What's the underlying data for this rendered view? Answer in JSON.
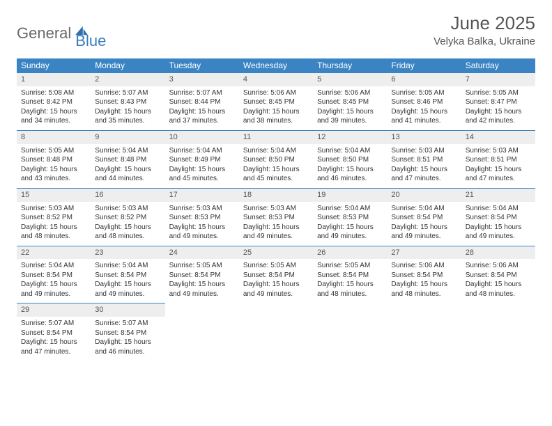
{
  "brand": {
    "first": "General",
    "second": "Blue"
  },
  "title": "June 2025",
  "location": "Velyka Balka, Ukraine",
  "colors": {
    "header_bg": "#3a84c4",
    "header_text": "#ffffff",
    "daynum_bg": "#eeeeee",
    "border": "#3a84c4",
    "text": "#333333",
    "brand_grey": "#6a6a6a",
    "brand_blue": "#3a7cbf"
  },
  "day_names": [
    "Sunday",
    "Monday",
    "Tuesday",
    "Wednesday",
    "Thursday",
    "Friday",
    "Saturday"
  ],
  "weeks": [
    [
      {
        "n": "1",
        "sr": "Sunrise: 5:08 AM",
        "ss": "Sunset: 8:42 PM",
        "d1": "Daylight: 15 hours",
        "d2": "and 34 minutes."
      },
      {
        "n": "2",
        "sr": "Sunrise: 5:07 AM",
        "ss": "Sunset: 8:43 PM",
        "d1": "Daylight: 15 hours",
        "d2": "and 35 minutes."
      },
      {
        "n": "3",
        "sr": "Sunrise: 5:07 AM",
        "ss": "Sunset: 8:44 PM",
        "d1": "Daylight: 15 hours",
        "d2": "and 37 minutes."
      },
      {
        "n": "4",
        "sr": "Sunrise: 5:06 AM",
        "ss": "Sunset: 8:45 PM",
        "d1": "Daylight: 15 hours",
        "d2": "and 38 minutes."
      },
      {
        "n": "5",
        "sr": "Sunrise: 5:06 AM",
        "ss": "Sunset: 8:45 PM",
        "d1": "Daylight: 15 hours",
        "d2": "and 39 minutes."
      },
      {
        "n": "6",
        "sr": "Sunrise: 5:05 AM",
        "ss": "Sunset: 8:46 PM",
        "d1": "Daylight: 15 hours",
        "d2": "and 41 minutes."
      },
      {
        "n": "7",
        "sr": "Sunrise: 5:05 AM",
        "ss": "Sunset: 8:47 PM",
        "d1": "Daylight: 15 hours",
        "d2": "and 42 minutes."
      }
    ],
    [
      {
        "n": "8",
        "sr": "Sunrise: 5:05 AM",
        "ss": "Sunset: 8:48 PM",
        "d1": "Daylight: 15 hours",
        "d2": "and 43 minutes."
      },
      {
        "n": "9",
        "sr": "Sunrise: 5:04 AM",
        "ss": "Sunset: 8:48 PM",
        "d1": "Daylight: 15 hours",
        "d2": "and 44 minutes."
      },
      {
        "n": "10",
        "sr": "Sunrise: 5:04 AM",
        "ss": "Sunset: 8:49 PM",
        "d1": "Daylight: 15 hours",
        "d2": "and 45 minutes."
      },
      {
        "n": "11",
        "sr": "Sunrise: 5:04 AM",
        "ss": "Sunset: 8:50 PM",
        "d1": "Daylight: 15 hours",
        "d2": "and 45 minutes."
      },
      {
        "n": "12",
        "sr": "Sunrise: 5:04 AM",
        "ss": "Sunset: 8:50 PM",
        "d1": "Daylight: 15 hours",
        "d2": "and 46 minutes."
      },
      {
        "n": "13",
        "sr": "Sunrise: 5:03 AM",
        "ss": "Sunset: 8:51 PM",
        "d1": "Daylight: 15 hours",
        "d2": "and 47 minutes."
      },
      {
        "n": "14",
        "sr": "Sunrise: 5:03 AM",
        "ss": "Sunset: 8:51 PM",
        "d1": "Daylight: 15 hours",
        "d2": "and 47 minutes."
      }
    ],
    [
      {
        "n": "15",
        "sr": "Sunrise: 5:03 AM",
        "ss": "Sunset: 8:52 PM",
        "d1": "Daylight: 15 hours",
        "d2": "and 48 minutes."
      },
      {
        "n": "16",
        "sr": "Sunrise: 5:03 AM",
        "ss": "Sunset: 8:52 PM",
        "d1": "Daylight: 15 hours",
        "d2": "and 48 minutes."
      },
      {
        "n": "17",
        "sr": "Sunrise: 5:03 AM",
        "ss": "Sunset: 8:53 PM",
        "d1": "Daylight: 15 hours",
        "d2": "and 49 minutes."
      },
      {
        "n": "18",
        "sr": "Sunrise: 5:03 AM",
        "ss": "Sunset: 8:53 PM",
        "d1": "Daylight: 15 hours",
        "d2": "and 49 minutes."
      },
      {
        "n": "19",
        "sr": "Sunrise: 5:04 AM",
        "ss": "Sunset: 8:53 PM",
        "d1": "Daylight: 15 hours",
        "d2": "and 49 minutes."
      },
      {
        "n": "20",
        "sr": "Sunrise: 5:04 AM",
        "ss": "Sunset: 8:54 PM",
        "d1": "Daylight: 15 hours",
        "d2": "and 49 minutes."
      },
      {
        "n": "21",
        "sr": "Sunrise: 5:04 AM",
        "ss": "Sunset: 8:54 PM",
        "d1": "Daylight: 15 hours",
        "d2": "and 49 minutes."
      }
    ],
    [
      {
        "n": "22",
        "sr": "Sunrise: 5:04 AM",
        "ss": "Sunset: 8:54 PM",
        "d1": "Daylight: 15 hours",
        "d2": "and 49 minutes."
      },
      {
        "n": "23",
        "sr": "Sunrise: 5:04 AM",
        "ss": "Sunset: 8:54 PM",
        "d1": "Daylight: 15 hours",
        "d2": "and 49 minutes."
      },
      {
        "n": "24",
        "sr": "Sunrise: 5:05 AM",
        "ss": "Sunset: 8:54 PM",
        "d1": "Daylight: 15 hours",
        "d2": "and 49 minutes."
      },
      {
        "n": "25",
        "sr": "Sunrise: 5:05 AM",
        "ss": "Sunset: 8:54 PM",
        "d1": "Daylight: 15 hours",
        "d2": "and 49 minutes."
      },
      {
        "n": "26",
        "sr": "Sunrise: 5:05 AM",
        "ss": "Sunset: 8:54 PM",
        "d1": "Daylight: 15 hours",
        "d2": "and 48 minutes."
      },
      {
        "n": "27",
        "sr": "Sunrise: 5:06 AM",
        "ss": "Sunset: 8:54 PM",
        "d1": "Daylight: 15 hours",
        "d2": "and 48 minutes."
      },
      {
        "n": "28",
        "sr": "Sunrise: 5:06 AM",
        "ss": "Sunset: 8:54 PM",
        "d1": "Daylight: 15 hours",
        "d2": "and 48 minutes."
      }
    ],
    [
      {
        "n": "29",
        "sr": "Sunrise: 5:07 AM",
        "ss": "Sunset: 8:54 PM",
        "d1": "Daylight: 15 hours",
        "d2": "and 47 minutes."
      },
      {
        "n": "30",
        "sr": "Sunrise: 5:07 AM",
        "ss": "Sunset: 8:54 PM",
        "d1": "Daylight: 15 hours",
        "d2": "and 46 minutes."
      },
      null,
      null,
      null,
      null,
      null
    ]
  ]
}
